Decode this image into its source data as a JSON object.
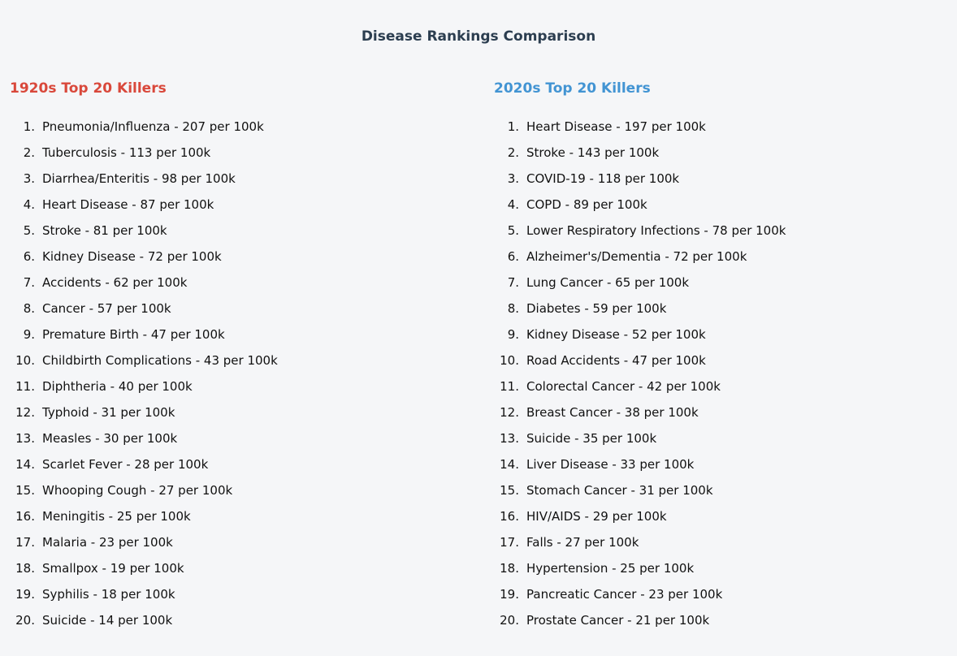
{
  "page": {
    "title": "Disease Rankings Comparison",
    "background_color": "#f5f6f8",
    "title_color": "#2c3e50",
    "text_color": "#111111"
  },
  "format": {
    "rank_suffix": ".",
    "separator": " - ",
    "rate_suffix": "per 100k"
  },
  "columns": [
    {
      "heading": "1920s Top 20 Killers",
      "heading_color": "#d9483b",
      "items": [
        {
          "rank": 1,
          "disease": "Pneumonia/Influenza",
          "rate": 207
        },
        {
          "rank": 2,
          "disease": "Tuberculosis",
          "rate": 113
        },
        {
          "rank": 3,
          "disease": "Diarrhea/Enteritis",
          "rate": 98
        },
        {
          "rank": 4,
          "disease": "Heart Disease",
          "rate": 87
        },
        {
          "rank": 5,
          "disease": "Stroke",
          "rate": 81
        },
        {
          "rank": 6,
          "disease": "Kidney Disease",
          "rate": 72
        },
        {
          "rank": 7,
          "disease": "Accidents",
          "rate": 62
        },
        {
          "rank": 8,
          "disease": "Cancer",
          "rate": 57
        },
        {
          "rank": 9,
          "disease": "Premature Birth",
          "rate": 47
        },
        {
          "rank": 10,
          "disease": "Childbirth Complications",
          "rate": 43
        },
        {
          "rank": 11,
          "disease": "Diphtheria",
          "rate": 40
        },
        {
          "rank": 12,
          "disease": "Typhoid",
          "rate": 31
        },
        {
          "rank": 13,
          "disease": "Measles",
          "rate": 30
        },
        {
          "rank": 14,
          "disease": "Scarlet Fever",
          "rate": 28
        },
        {
          "rank": 15,
          "disease": "Whooping Cough",
          "rate": 27
        },
        {
          "rank": 16,
          "disease": "Meningitis",
          "rate": 25
        },
        {
          "rank": 17,
          "disease": "Malaria",
          "rate": 23
        },
        {
          "rank": 18,
          "disease": "Smallpox",
          "rate": 19
        },
        {
          "rank": 19,
          "disease": "Syphilis",
          "rate": 18
        },
        {
          "rank": 20,
          "disease": "Suicide",
          "rate": 14
        }
      ]
    },
    {
      "heading": "2020s Top 20 Killers",
      "heading_color": "#4294d3",
      "items": [
        {
          "rank": 1,
          "disease": "Heart Disease",
          "rate": 197
        },
        {
          "rank": 2,
          "disease": "Stroke",
          "rate": 143
        },
        {
          "rank": 3,
          "disease": "COVID-19",
          "rate": 118
        },
        {
          "rank": 4,
          "disease": "COPD",
          "rate": 89
        },
        {
          "rank": 5,
          "disease": "Lower Respiratory Infections",
          "rate": 78
        },
        {
          "rank": 6,
          "disease": "Alzheimer's/Dementia",
          "rate": 72
        },
        {
          "rank": 7,
          "disease": "Lung Cancer",
          "rate": 65
        },
        {
          "rank": 8,
          "disease": "Diabetes",
          "rate": 59
        },
        {
          "rank": 9,
          "disease": "Kidney Disease",
          "rate": 52
        },
        {
          "rank": 10,
          "disease": "Road Accidents",
          "rate": 47
        },
        {
          "rank": 11,
          "disease": "Colorectal Cancer",
          "rate": 42
        },
        {
          "rank": 12,
          "disease": "Breast Cancer",
          "rate": 38
        },
        {
          "rank": 13,
          "disease": "Suicide",
          "rate": 35
        },
        {
          "rank": 14,
          "disease": "Liver Disease",
          "rate": 33
        },
        {
          "rank": 15,
          "disease": "Stomach Cancer",
          "rate": 31
        },
        {
          "rank": 16,
          "disease": "HIV/AIDS",
          "rate": 29
        },
        {
          "rank": 17,
          "disease": "Falls",
          "rate": 27
        },
        {
          "rank": 18,
          "disease": "Hypertension",
          "rate": 25
        },
        {
          "rank": 19,
          "disease": "Pancreatic Cancer",
          "rate": 23
        },
        {
          "rank": 20,
          "disease": "Prostate Cancer",
          "rate": 21
        }
      ]
    }
  ]
}
